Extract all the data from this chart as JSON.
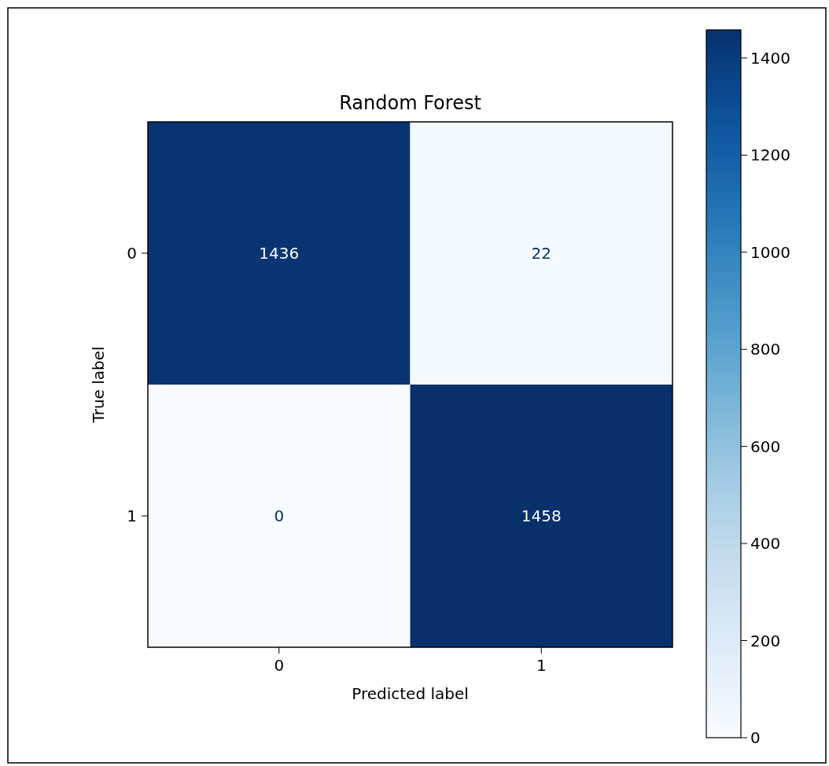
{
  "chart_data": {
    "type": "heatmap",
    "title": "Random Forest",
    "xlabel": "Predicted label",
    "ylabel": "True label",
    "categories": [
      "0",
      "1"
    ],
    "y_categories": [
      "0",
      "1"
    ],
    "cells": [
      [
        1436,
        22
      ],
      [
        0,
        1458
      ]
    ],
    "clim": [
      0,
      1458
    ],
    "cticks": [
      0,
      200,
      400,
      600,
      800,
      1000,
      1200,
      1400
    ],
    "data_labels": true
  }
}
